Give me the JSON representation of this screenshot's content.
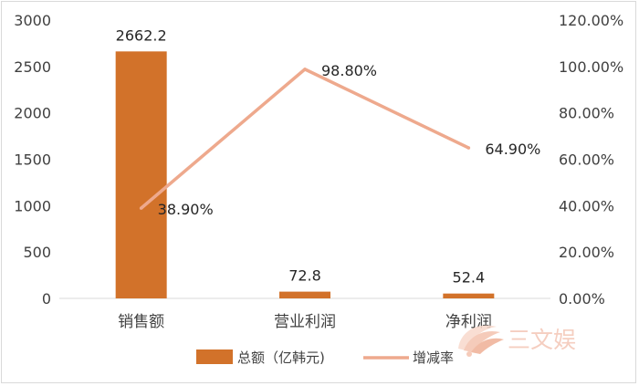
{
  "chart_data": {
    "type": "bar",
    "categories": [
      "销售额",
      "营业利润",
      "净利润"
    ],
    "series": [
      {
        "name": "总额（亿韩元)",
        "type": "bar",
        "axis": "left",
        "values": [
          2662.2,
          72.8,
          52.4
        ],
        "labels": [
          "2662.2",
          "72.8",
          "52.4"
        ],
        "color": "#d2722a"
      },
      {
        "name": "增减率",
        "type": "line",
        "axis": "right",
        "values": [
          0.389,
          0.988,
          0.649
        ],
        "labels": [
          "38.90%",
          "98.80%",
          "64.90%"
        ],
        "color": "#eea98d"
      }
    ],
    "y_left": {
      "min": 0,
      "max": 3000,
      "ticks": [
        "0",
        "500",
        "1000",
        "1500",
        "2000",
        "2500",
        "3000"
      ]
    },
    "y_right": {
      "min": 0,
      "max": 1.2,
      "ticks": [
        "0.00%",
        "20.00%",
        "40.00%",
        "60.00%",
        "80.00%",
        "100.00%",
        "120.00%"
      ]
    },
    "grid": false,
    "legend_position": "bottom",
    "axis_line_color": "#d9d9d9",
    "tick_color": "#404040"
  },
  "watermark": {
    "text": "三文娱",
    "color": "#f4c6b6",
    "icon": "fan-logo-icon"
  }
}
